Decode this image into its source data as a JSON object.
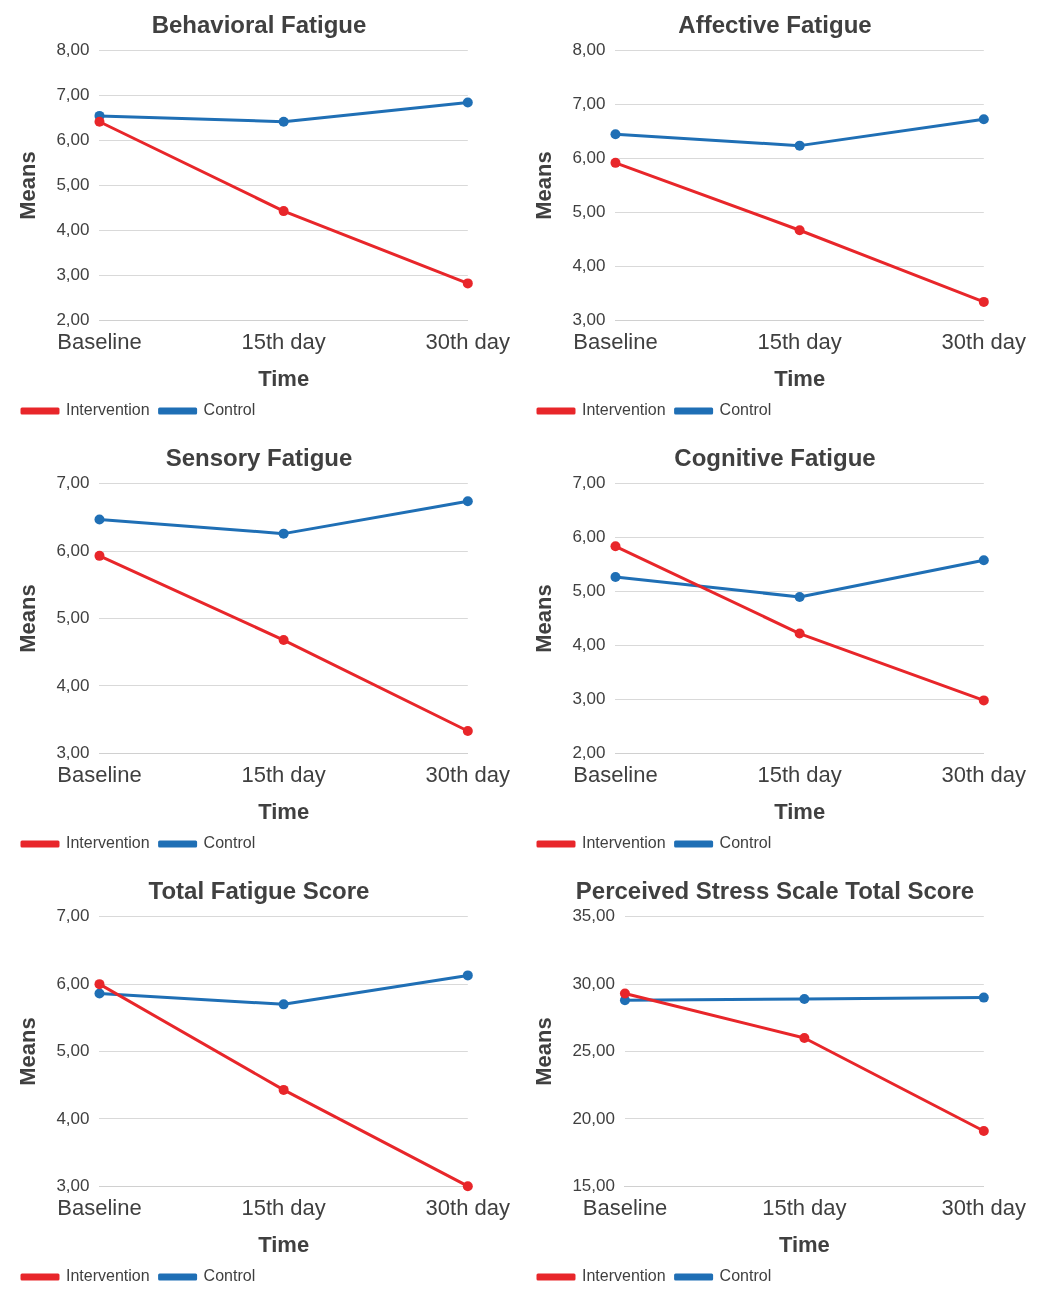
{
  "chart_data": [
    {
      "type": "line",
      "title": "Behavioral Fatigue",
      "xlabel": "Time",
      "ylabel": "Means",
      "categories": [
        "Baseline",
        "15th day",
        "30th day"
      ],
      "series": [
        {
          "name": "Intervention",
          "color": "#e8262a",
          "values": [
            6.42,
            4.43,
            2.82
          ]
        },
        {
          "name": "Control",
          "color": "#1f6fb5",
          "values": [
            6.55,
            6.42,
            6.85
          ]
        }
      ],
      "ylim": [
        2,
        8
      ],
      "yticks": [
        {
          "value": 2,
          "label": "2,00"
        },
        {
          "value": 3,
          "label": "3,00"
        },
        {
          "value": 4,
          "label": "4,00"
        },
        {
          "value": 5,
          "label": "5,00"
        },
        {
          "value": 6,
          "label": "6,00"
        },
        {
          "value": 7,
          "label": "7,00"
        },
        {
          "value": 8,
          "label": "8,00"
        }
      ],
      "grid": "y",
      "legend": "bottom left",
      "marker": "circle",
      "line_style": "solid"
    },
    {
      "type": "line",
      "title": "Affective Fatigue",
      "xlabel": "Time",
      "ylabel": "Means",
      "categories": [
        "Baseline",
        "15th day",
        "30th day"
      ],
      "series": [
        {
          "name": "Intervention",
          "color": "#e8262a",
          "values": [
            5.92,
            4.67,
            3.34
          ]
        },
        {
          "name": "Control",
          "color": "#1f6fb5",
          "values": [
            6.45,
            6.24,
            6.73
          ]
        }
      ],
      "ylim": [
        3,
        8
      ],
      "yticks": [
        {
          "value": 3,
          "label": "3,00"
        },
        {
          "value": 4,
          "label": "4,00"
        },
        {
          "value": 5,
          "label": "5,00"
        },
        {
          "value": 6,
          "label": "6,00"
        },
        {
          "value": 7,
          "label": "7,00"
        },
        {
          "value": 8,
          "label": "8,00"
        }
      ],
      "grid": "y",
      "legend": "bottom left",
      "marker": "circle",
      "line_style": "solid"
    },
    {
      "type": "line",
      "title": "Sensory Fatigue",
      "xlabel": "Time",
      "ylabel": "Means",
      "categories": [
        "Baseline",
        "15th day",
        "30th day"
      ],
      "series": [
        {
          "name": "Intervention",
          "color": "#e8262a",
          "values": [
            5.93,
            4.68,
            3.33
          ]
        },
        {
          "name": "Control",
          "color": "#1f6fb5",
          "values": [
            6.47,
            6.26,
            6.74
          ]
        }
      ],
      "ylim": [
        3,
        7
      ],
      "yticks": [
        {
          "value": 3,
          "label": "3,00"
        },
        {
          "value": 4,
          "label": "4,00"
        },
        {
          "value": 5,
          "label": "5,00"
        },
        {
          "value": 6,
          "label": "6,00"
        },
        {
          "value": 7,
          "label": "7,00"
        }
      ],
      "grid": "y",
      "legend": "bottom left",
      "marker": "circle",
      "line_style": "solid"
    },
    {
      "type": "line",
      "title": "Cognitive Fatigue",
      "xlabel": "Time",
      "ylabel": "Means",
      "categories": [
        "Baseline",
        "15th day",
        "30th day"
      ],
      "series": [
        {
          "name": "Intervention",
          "color": "#e8262a",
          "values": [
            5.84,
            4.22,
            2.98
          ]
        },
        {
          "name": "Control",
          "color": "#1f6fb5",
          "values": [
            5.27,
            4.9,
            5.58
          ]
        }
      ],
      "ylim": [
        2,
        7
      ],
      "yticks": [
        {
          "value": 2,
          "label": "2,00"
        },
        {
          "value": 3,
          "label": "3,00"
        },
        {
          "value": 4,
          "label": "4,00"
        },
        {
          "value": 5,
          "label": "5,00"
        },
        {
          "value": 6,
          "label": "6,00"
        },
        {
          "value": 7,
          "label": "7,00"
        }
      ],
      "grid": "y",
      "legend": "bottom left",
      "marker": "circle",
      "line_style": "solid"
    },
    {
      "type": "line",
      "title": "Total Fatigue Score",
      "xlabel": "Time",
      "ylabel": "Means",
      "categories": [
        "Baseline",
        "15th day",
        "30th day"
      ],
      "series": [
        {
          "name": "Intervention",
          "color": "#e8262a",
          "values": [
            6.0,
            4.43,
            3.0
          ]
        },
        {
          "name": "Control",
          "color": "#1f6fb5",
          "values": [
            5.86,
            5.7,
            6.13
          ]
        }
      ],
      "ylim": [
        3,
        7
      ],
      "yticks": [
        {
          "value": 3,
          "label": "3,00"
        },
        {
          "value": 4,
          "label": "4,00"
        },
        {
          "value": 5,
          "label": "5,00"
        },
        {
          "value": 6,
          "label": "6,00"
        },
        {
          "value": 7,
          "label": "7,00"
        }
      ],
      "grid": "y",
      "legend": "bottom left",
      "marker": "circle",
      "line_style": "solid"
    },
    {
      "type": "line",
      "title": "Perceived Stress Scale Total Score",
      "xlabel": "Time",
      "ylabel": "Means",
      "categories": [
        "Baseline",
        "15th day",
        "30th day"
      ],
      "series": [
        {
          "name": "Intervention",
          "color": "#e8262a",
          "values": [
            29.3,
            26.0,
            19.1
          ]
        },
        {
          "name": "Control",
          "color": "#1f6fb5",
          "values": [
            28.8,
            28.9,
            29.0
          ]
        }
      ],
      "ylim": [
        15,
        35
      ],
      "yticks": [
        {
          "value": 15,
          "label": "15,00"
        },
        {
          "value": 20,
          "label": "20,00"
        },
        {
          "value": 25,
          "label": "25,00"
        },
        {
          "value": 30,
          "label": "30,00"
        },
        {
          "value": 35,
          "label": "35,00"
        }
      ],
      "grid": "y",
      "legend": "bottom left",
      "marker": "circle",
      "line_style": "solid"
    }
  ]
}
